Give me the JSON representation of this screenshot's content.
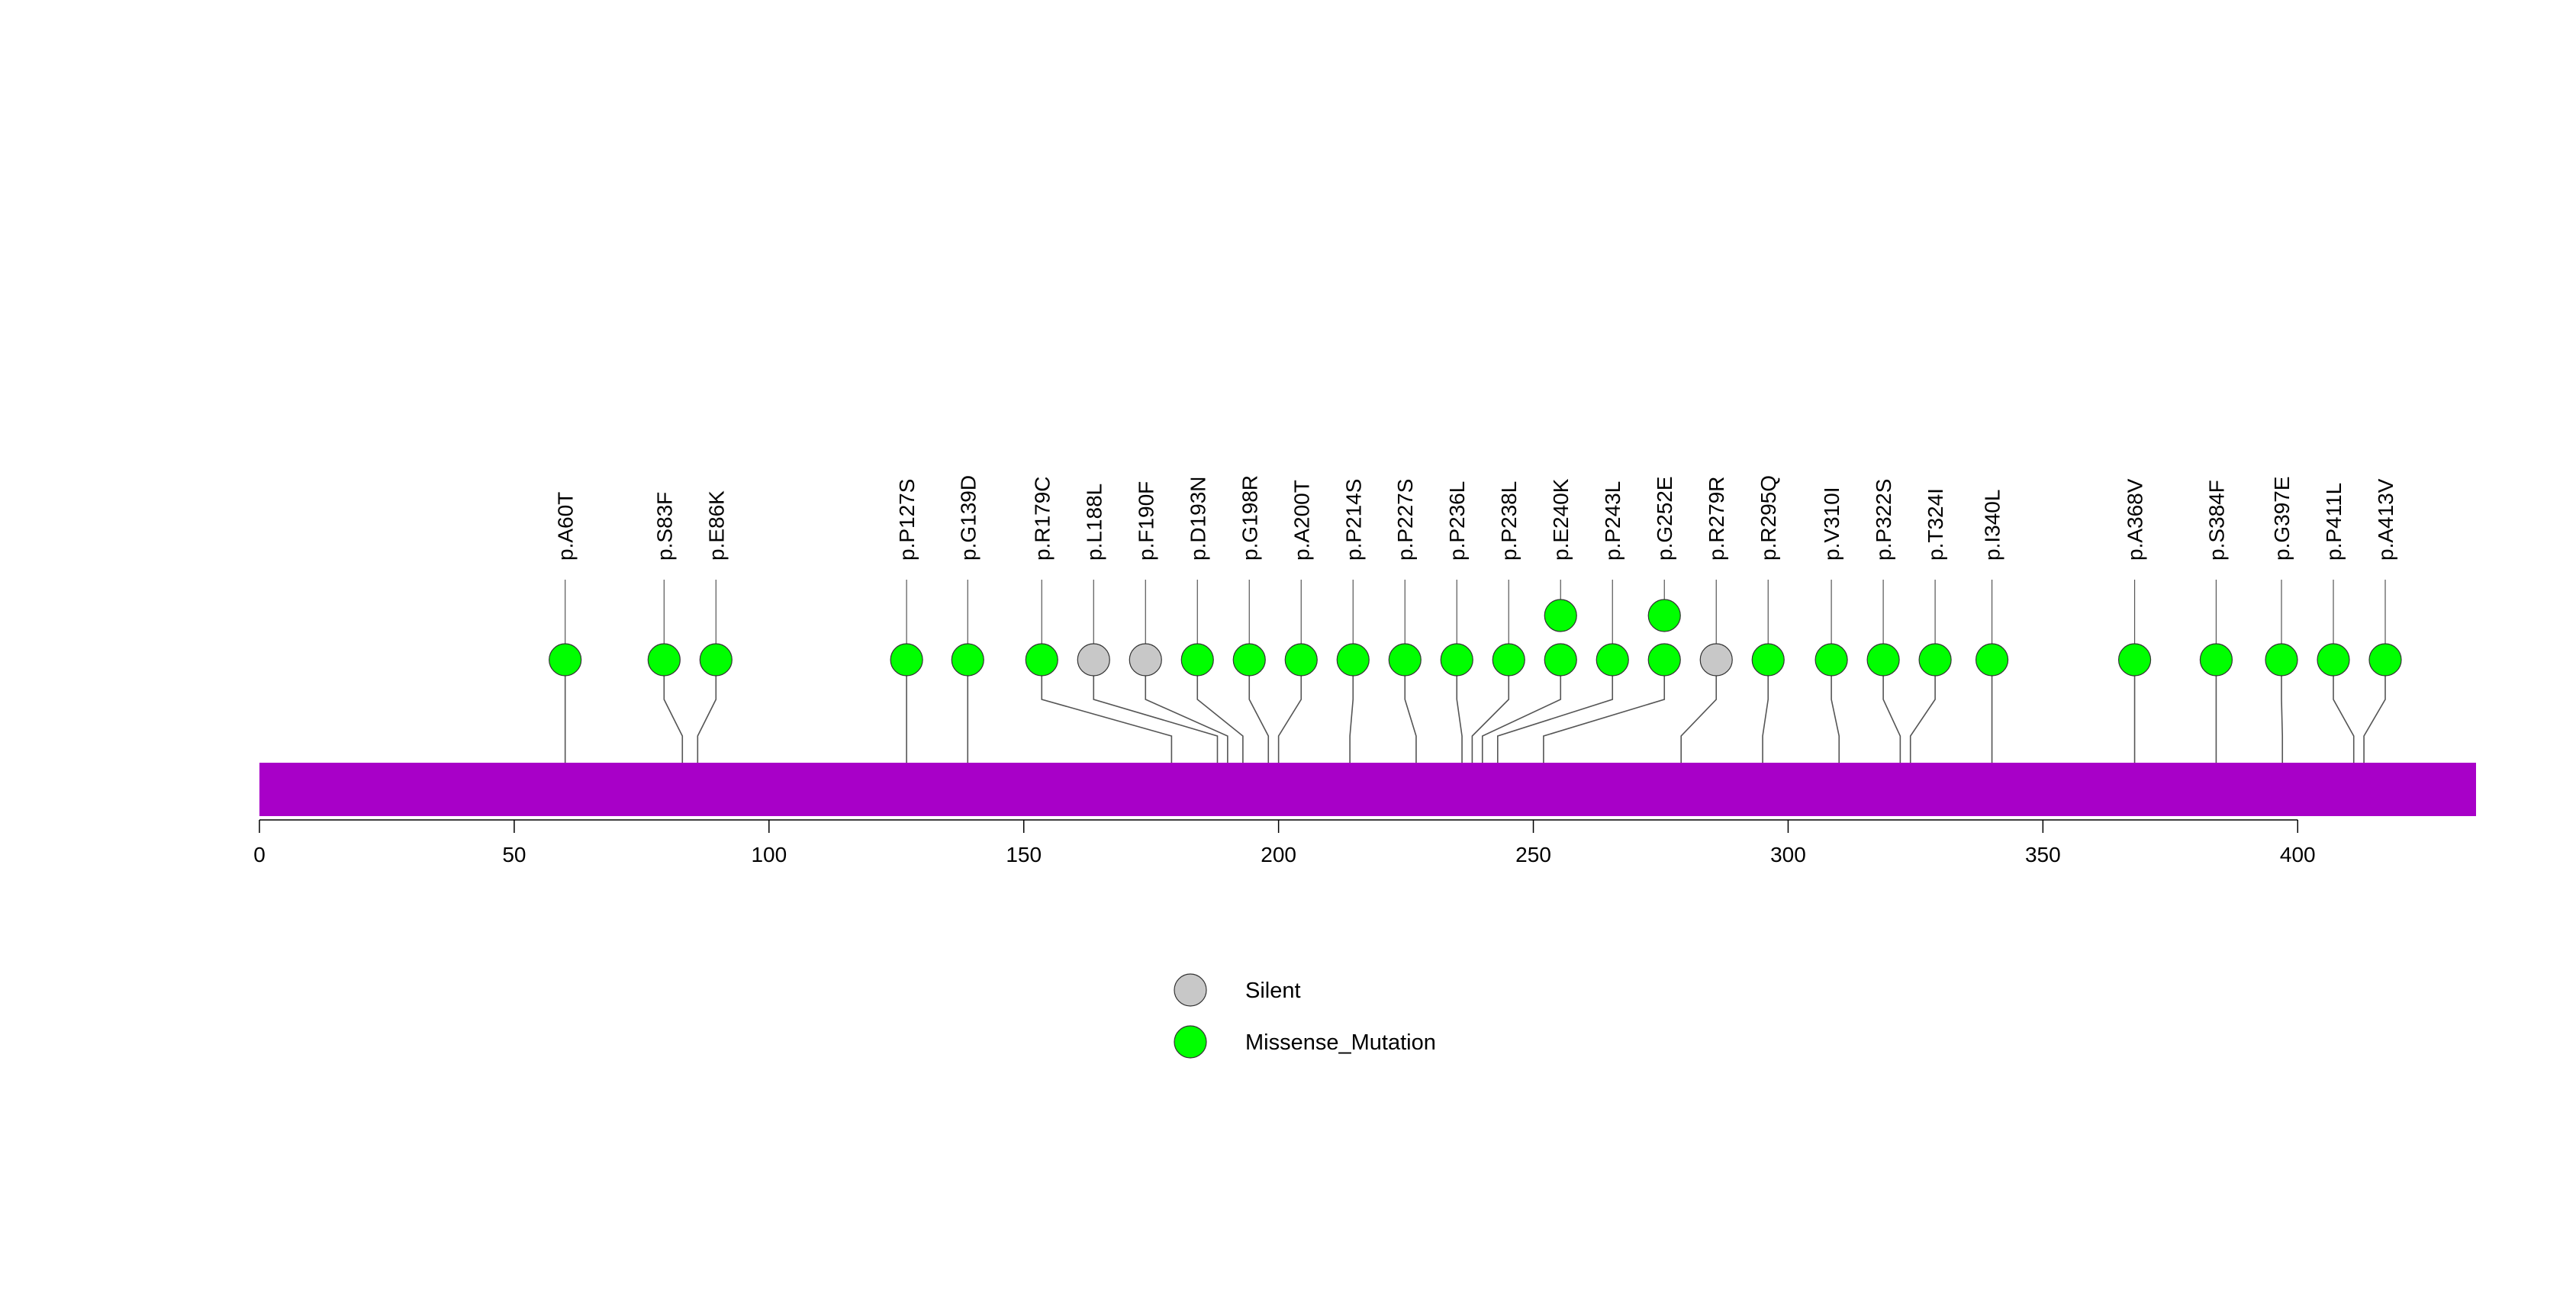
{
  "chart_data": {
    "type": "lollipop",
    "title": "",
    "xlabel": "",
    "ylabel": "",
    "protein_length": 435,
    "xlim": [
      0,
      435
    ],
    "x_ticks": [
      0,
      50,
      100,
      150,
      200,
      250,
      300,
      350,
      400
    ],
    "colors": {
      "protein_bar": "#A800C8",
      "Missense_Mutation": "#00FF00",
      "Silent": "#C8C8C8",
      "stem": "#555555",
      "axis": "#000000"
    },
    "legend": {
      "placement": "bottom-center",
      "entries": [
        {
          "label": "Silent",
          "type": "Silent"
        },
        {
          "label": "Missense_Mutation",
          "type": "Missense_Mutation"
        }
      ]
    },
    "mutations": [
      {
        "label": "p.A60T",
        "position": 60,
        "type": "Missense_Mutation",
        "count": 1
      },
      {
        "label": "p.S83F",
        "position": 83,
        "type": "Missense_Mutation",
        "count": 1
      },
      {
        "label": "p.E86K",
        "position": 86,
        "type": "Missense_Mutation",
        "count": 1
      },
      {
        "label": "p.P127S",
        "position": 127,
        "type": "Missense_Mutation",
        "count": 1
      },
      {
        "label": "p.G139D",
        "position": 139,
        "type": "Missense_Mutation",
        "count": 1
      },
      {
        "label": "p.R179C",
        "position": 179,
        "type": "Missense_Mutation",
        "count": 1
      },
      {
        "label": "p.L188L",
        "position": 188,
        "type": "Silent",
        "count": 1
      },
      {
        "label": "p.F190F",
        "position": 190,
        "type": "Silent",
        "count": 1
      },
      {
        "label": "p.D193N",
        "position": 193,
        "type": "Missense_Mutation",
        "count": 1
      },
      {
        "label": "p.G198R",
        "position": 198,
        "type": "Missense_Mutation",
        "count": 1
      },
      {
        "label": "p.A200T",
        "position": 200,
        "type": "Missense_Mutation",
        "count": 1
      },
      {
        "label": "p.P214S",
        "position": 214,
        "type": "Missense_Mutation",
        "count": 1
      },
      {
        "label": "p.P227S",
        "position": 227,
        "type": "Missense_Mutation",
        "count": 1
      },
      {
        "label": "p.P236L",
        "position": 236,
        "type": "Missense_Mutation",
        "count": 1
      },
      {
        "label": "p.P238L",
        "position": 238,
        "type": "Missense_Mutation",
        "count": 1
      },
      {
        "label": "p.E240K",
        "position": 240,
        "type": "Missense_Mutation",
        "count": 2
      },
      {
        "label": "p.P243L",
        "position": 243,
        "type": "Missense_Mutation",
        "count": 1
      },
      {
        "label": "p.G252E",
        "position": 252,
        "type": "Missense_Mutation",
        "count": 2
      },
      {
        "label": "p.R279R",
        "position": 279,
        "type": "Silent",
        "count": 1
      },
      {
        "label": "p.R295Q",
        "position": 295,
        "type": "Missense_Mutation",
        "count": 1
      },
      {
        "label": "p.V310I",
        "position": 310,
        "type": "Missense_Mutation",
        "count": 1
      },
      {
        "label": "p.P322S",
        "position": 322,
        "type": "Missense_Mutation",
        "count": 1
      },
      {
        "label": "p.T324I",
        "position": 324,
        "type": "Missense_Mutation",
        "count": 1
      },
      {
        "label": "p.I340L",
        "position": 340,
        "type": "Missense_Mutation",
        "count": 1
      },
      {
        "label": "p.A368V",
        "position": 368,
        "type": "Missense_Mutation",
        "count": 1
      },
      {
        "label": "p.S384F",
        "position": 384,
        "type": "Missense_Mutation",
        "count": 1
      },
      {
        "label": "p.G397E",
        "position": 397,
        "type": "Missense_Mutation",
        "count": 1
      },
      {
        "label": "p.P411L",
        "position": 411,
        "type": "Missense_Mutation",
        "count": 1
      },
      {
        "label": "p.A413V",
        "position": 413,
        "type": "Missense_Mutation",
        "count": 1
      }
    ]
  }
}
